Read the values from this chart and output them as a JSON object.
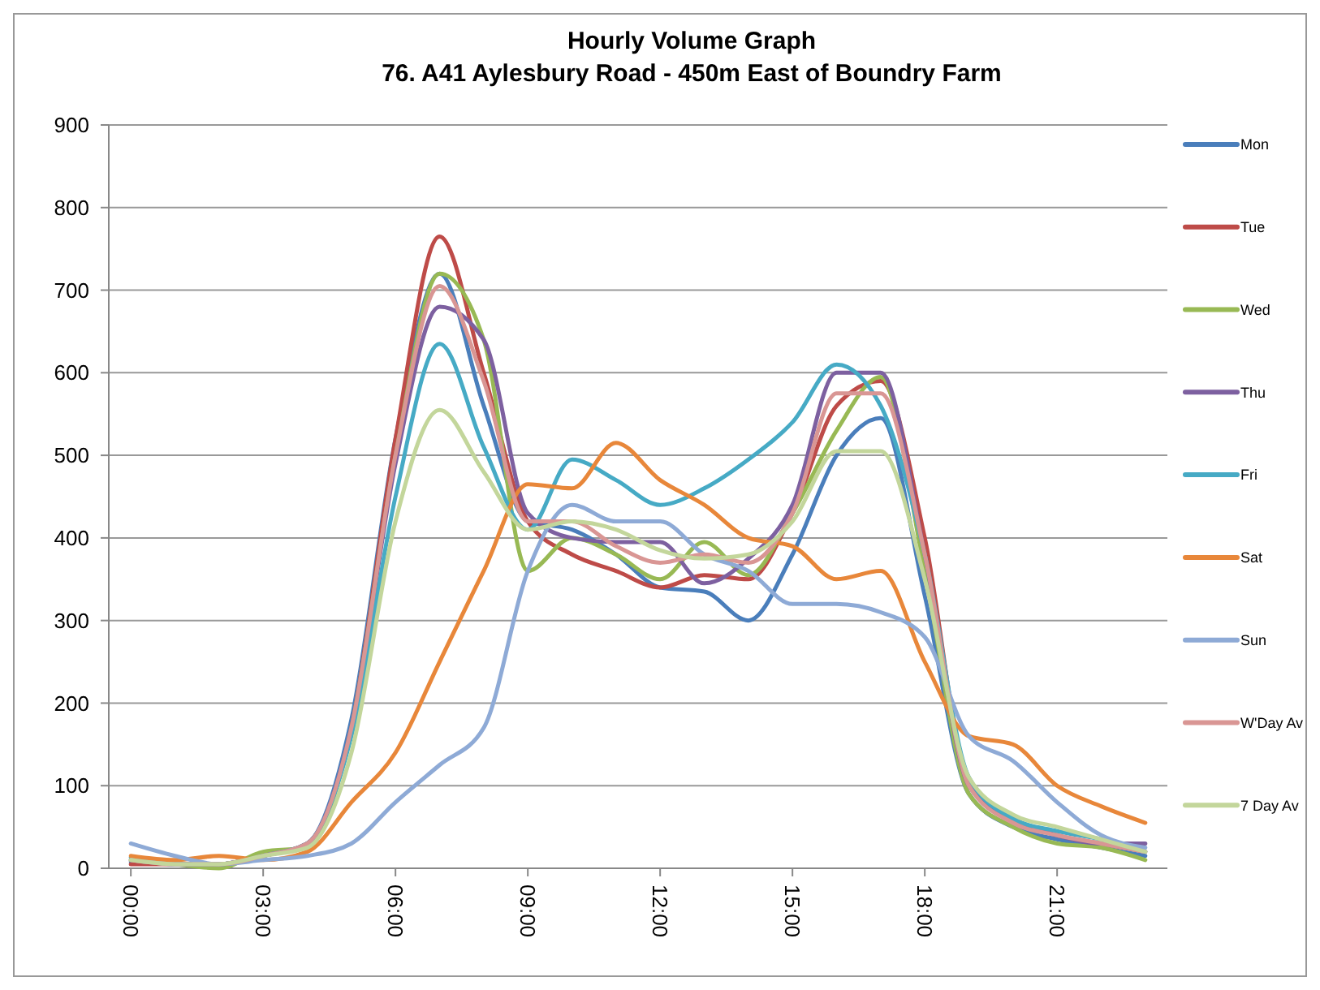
{
  "chart_data": {
    "type": "line",
    "title": "Hourly Volume Graph",
    "subtitle": "76. A41 Aylesbury Road - 450m East of Boundry Farm",
    "x": [
      0,
      1,
      2,
      3,
      4,
      5,
      6,
      7,
      8,
      9,
      10,
      11,
      12,
      13,
      14,
      15,
      16,
      17,
      18,
      19,
      20,
      21,
      22,
      23
    ],
    "xlim": [
      -0.5,
      23.5
    ],
    "xticks": [
      {
        "value": 0,
        "label": "00:00"
      },
      {
        "value": 3,
        "label": "03:00"
      },
      {
        "value": 6,
        "label": "06:00"
      },
      {
        "value": 9,
        "label": "09:00"
      },
      {
        "value": 12,
        "label": "12:00"
      },
      {
        "value": 15,
        "label": "15:00"
      },
      {
        "value": 18,
        "label": "18:00"
      },
      {
        "value": 21,
        "label": "21:00"
      }
    ],
    "ylim": [
      0,
      900
    ],
    "yticks": [
      0,
      100,
      200,
      300,
      400,
      500,
      600,
      700,
      800,
      900
    ],
    "grid": "y",
    "legend": "right",
    "marker": "none",
    "line_style": "solid",
    "series": [
      {
        "name": "Mon",
        "color": "#4a7ebb",
        "values": [
          8,
          5,
          5,
          15,
          30,
          180,
          520,
          720,
          560,
          420,
          410,
          380,
          340,
          335,
          300,
          380,
          500,
          545,
          330,
          90,
          50,
          35,
          25,
          15
        ]
      },
      {
        "name": "Tue",
        "color": "#be4b48",
        "values": [
          5,
          5,
          5,
          15,
          30,
          170,
          520,
          765,
          600,
          420,
          380,
          360,
          340,
          355,
          350,
          430,
          560,
          590,
          400,
          100,
          60,
          40,
          30,
          20
        ]
      },
      {
        "name": "Wed",
        "color": "#98b954",
        "values": [
          10,
          5,
          0,
          20,
          25,
          170,
          500,
          720,
          640,
          360,
          400,
          380,
          350,
          395,
          355,
          430,
          530,
          595,
          360,
          90,
          50,
          30,
          25,
          10
        ]
      },
      {
        "name": "Thu",
        "color": "#7d60a0",
        "values": [
          10,
          5,
          5,
          15,
          30,
          170,
          490,
          680,
          640,
          430,
          400,
          395,
          395,
          345,
          375,
          440,
          600,
          600,
          380,
          100,
          60,
          40,
          30,
          30
        ]
      },
      {
        "name": "Fri",
        "color": "#46aac5",
        "values": [
          13,
          5,
          5,
          15,
          30,
          160,
          450,
          635,
          510,
          410,
          495,
          470,
          440,
          460,
          495,
          540,
          610,
          560,
          380,
          110,
          60,
          45,
          35,
          20
        ]
      },
      {
        "name": "Sat",
        "color": "#e8873a",
        "values": [
          15,
          10,
          15,
          10,
          20,
          80,
          140,
          250,
          360,
          465,
          460,
          515,
          470,
          440,
          400,
          390,
          350,
          360,
          250,
          160,
          150,
          100,
          75,
          55
        ]
      },
      {
        "name": "Sun",
        "color": "#8eaad6",
        "values": [
          30,
          15,
          5,
          10,
          15,
          30,
          80,
          125,
          170,
          360,
          440,
          420,
          420,
          380,
          360,
          320,
          320,
          310,
          280,
          160,
          130,
          80,
          40,
          25
        ]
      },
      {
        "name": "W'Day Av",
        "color": "#d99694",
        "values": [
          10,
          5,
          5,
          15,
          30,
          170,
          500,
          705,
          590,
          420,
          420,
          390,
          370,
          380,
          370,
          430,
          575,
          575,
          380,
          100,
          55,
          40,
          30,
          20
        ]
      },
      {
        "name": "7 Day Av",
        "color": "#c3d69b",
        "values": [
          10,
          5,
          5,
          15,
          25,
          140,
          420,
          555,
          480,
          410,
          420,
          410,
          385,
          375,
          380,
          420,
          505,
          505,
          350,
          110,
          65,
          50,
          35,
          20
        ]
      }
    ]
  }
}
